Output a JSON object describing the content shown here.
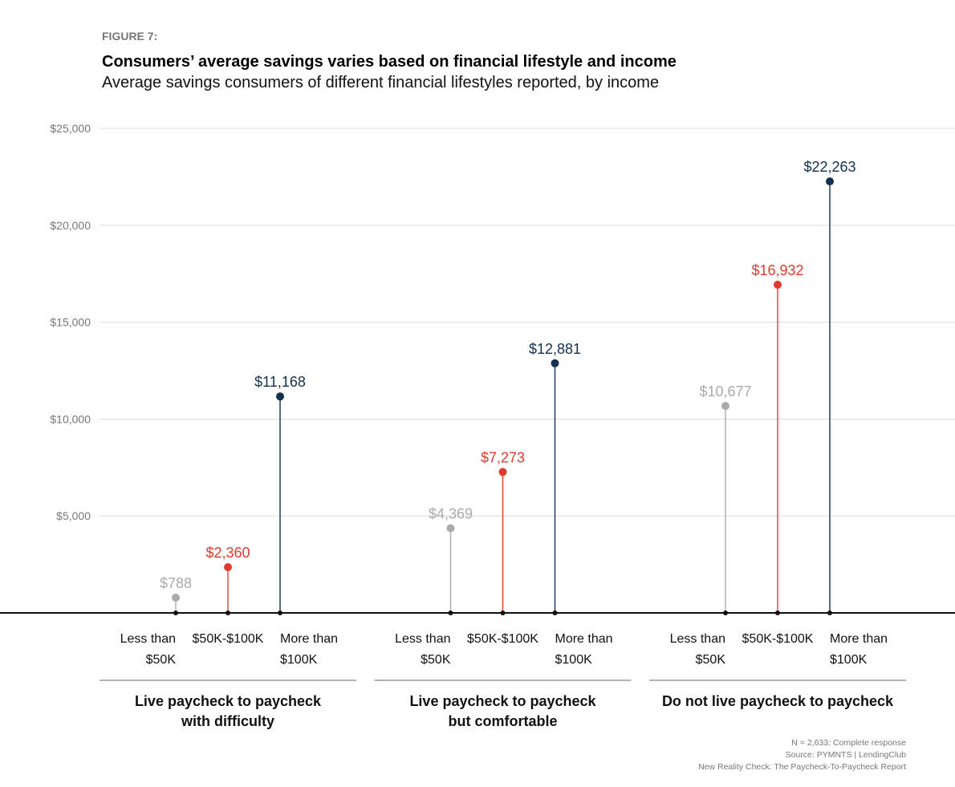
{
  "figure_label": "FIGURE 7:",
  "chart_data": {
    "type": "lollipop",
    "title": "Consumers’ average savings varies based on financial lifestyle and income",
    "subtitle": "Average savings consumers of different financial lifestyles reported, by income",
    "groups": [
      "Live paycheck to paycheck with difficulty",
      "Live paycheck to paycheck but comfortable",
      "Do not live paycheck to paycheck"
    ],
    "series": [
      {
        "name": "Less than $50K",
        "color": "#aaaaaa",
        "values": [
          788,
          4369,
          10677
        ],
        "value_labels": [
          "$788",
          "$4,369",
          "$10,677"
        ]
      },
      {
        "name": "$50K-$100K",
        "color": "#e03c2e",
        "values": [
          2360,
          7273,
          16932
        ],
        "value_labels": [
          "$2,360",
          "$7,273",
          "$16,932"
        ]
      },
      {
        "name": "More than $100K",
        "color": "#13304f",
        "values": [
          11168,
          12881,
          22263
        ],
        "value_labels": [
          "$11,168",
          "$12,881",
          "$22,263"
        ]
      }
    ],
    "ylim": [
      0,
      25000
    ],
    "yticks": [
      {
        "value": 5000,
        "label": "$5,000"
      },
      {
        "value": 10000,
        "label": "$10,000"
      },
      {
        "value": 15000,
        "label": "$15,000"
      },
      {
        "value": 20000,
        "label": "$20,000"
      },
      {
        "value": 25000,
        "label": "$25,000"
      }
    ],
    "grid": true
  },
  "footnotes": [
    "N = 2,633: Complete response",
    "Source: PYMNTS  |  LendingClub",
    "New Reality Check: The Paycheck-To-Paycheck Report"
  ]
}
